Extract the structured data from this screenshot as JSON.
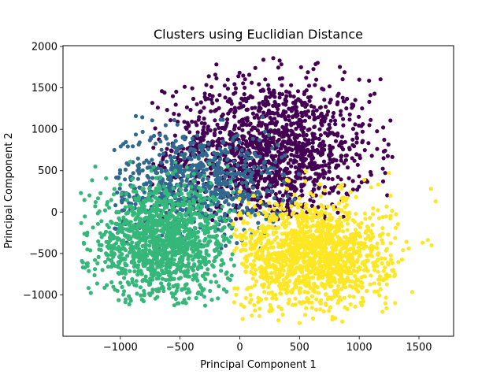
{
  "chart_data": {
    "type": "scatter",
    "title": "Clusters using Euclidian Distance",
    "xlabel": "Principal Component 1",
    "ylabel": "Principal Component 2",
    "xlim": [
      -1480,
      1790
    ],
    "ylim": [
      -1500,
      2010
    ],
    "xticks": [
      -1000,
      -500,
      0,
      500,
      1000,
      1500
    ],
    "xtick_labels": [
      "−1000",
      "−500",
      "0",
      "500",
      "1000",
      "1500"
    ],
    "yticks": [
      -1000,
      -500,
      0,
      500,
      1000,
      1500,
      2000
    ],
    "ytick_labels": [
      "−1000",
      "−500",
      "0",
      "500",
      "1000",
      "1500",
      "2000"
    ],
    "grid": false,
    "legend": "none",
    "clusters": [
      {
        "color": "#440154",
        "center": [
          250,
          750
        ],
        "spread": [
          430,
          430
        ],
        "range_x": [
          -750,
          1280
        ],
        "range_y": [
          -120,
          1860
        ],
        "approx_points": 1400,
        "sample_points": [
          [
            280,
            1860
          ],
          [
            640,
            1600
          ],
          [
            -580,
            1110
          ],
          [
            1100,
            450
          ],
          [
            1200,
            370
          ],
          [
            -100,
            1600
          ],
          [
            780,
            1150
          ],
          [
            980,
            900
          ],
          [
            -200,
            300
          ],
          [
            1000,
            1600
          ]
        ]
      },
      {
        "color": "#31688e",
        "center": [
          -380,
          350
        ],
        "spread": [
          380,
          320
        ],
        "range_x": [
          -1050,
          500
        ],
        "range_y": [
          -450,
          1160
        ],
        "approx_points": 700,
        "sample_points": [
          [
            -870,
            1160
          ],
          [
            -1050,
            750
          ],
          [
            -300,
            800
          ],
          [
            -180,
            120
          ],
          [
            380,
            360
          ],
          [
            -800,
            -100
          ],
          [
            30,
            200
          ],
          [
            -600,
            400
          ]
        ]
      },
      {
        "color": "#35b779",
        "center": [
          -650,
          -380
        ],
        "spread": [
          300,
          330
        ],
        "range_x": [
          -1330,
          -40
        ],
        "range_y": [
          -1130,
          760
        ],
        "approx_points": 1300,
        "sample_points": [
          [
            -1330,
            230
          ],
          [
            -1210,
            550
          ],
          [
            -450,
            -1100
          ],
          [
            -290,
            -1130
          ],
          [
            -100,
            -800
          ],
          [
            -1150,
            -700
          ],
          [
            -900,
            400
          ],
          [
            -700,
            0
          ]
        ]
      },
      {
        "color": "#fde725",
        "center": [
          600,
          -520
        ],
        "spread": [
          330,
          330
        ],
        "range_x": [
          -60,
          1640
        ],
        "range_y": [
          -1340,
          520
        ],
        "approx_points": 1400,
        "sample_points": [
          [
            1640,
            130
          ],
          [
            1600,
            280
          ],
          [
            1530,
            -370
          ],
          [
            500,
            -1340
          ],
          [
            800,
            -1280
          ],
          [
            1300,
            -1100
          ],
          [
            1250,
            470
          ],
          [
            100,
            -1250
          ],
          [
            1100,
            300
          ],
          [
            -30,
            -1000
          ]
        ]
      }
    ]
  }
}
